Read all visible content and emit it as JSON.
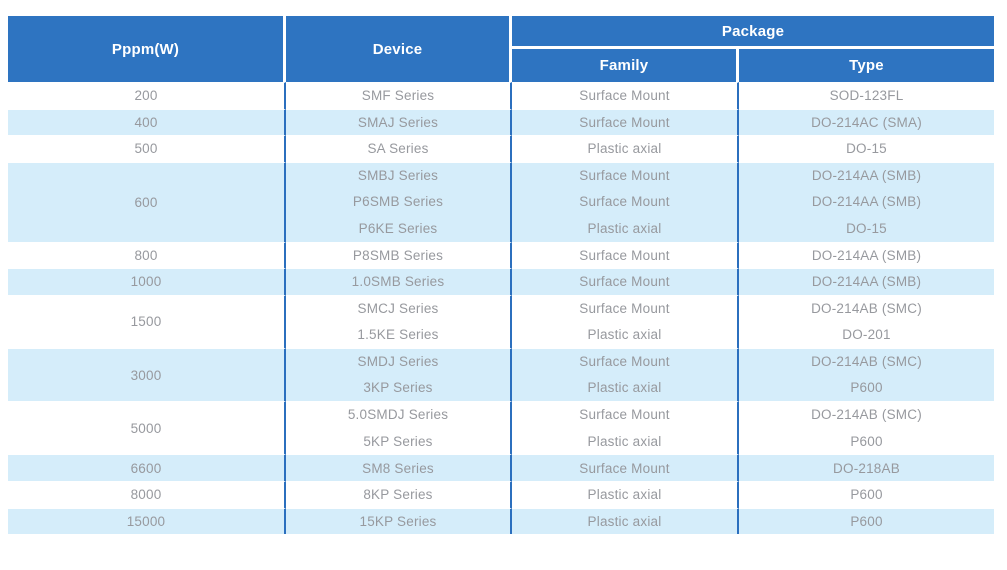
{
  "colors": {
    "header_bg": "#2E74C1",
    "header_text": "#FFFFFF",
    "row_alt_bg": "#D5EDFA",
    "divider": "#2B6FBE",
    "body_text": "#97999E"
  },
  "table": {
    "headers": {
      "pppm": "Pppm(W)",
      "device": "Device",
      "package": "Package",
      "family": "Family",
      "type": "Type"
    },
    "groups": [
      {
        "pppm": "200",
        "rows": [
          {
            "device": "SMF Series",
            "family": "Surface Mount",
            "type": "SOD-123FL"
          }
        ]
      },
      {
        "pppm": "400",
        "rows": [
          {
            "device": "SMAJ Series",
            "family": "Surface Mount",
            "type": "DO-214AC (SMA)"
          }
        ]
      },
      {
        "pppm": "500",
        "rows": [
          {
            "device": "SA Series",
            "family": "Plastic axial",
            "type": "DO-15"
          }
        ]
      },
      {
        "pppm": "600",
        "rows": [
          {
            "device": "SMBJ Series",
            "family": "Surface Mount",
            "type": "DO-214AA (SMB)"
          },
          {
            "device": "P6SMB Series",
            "family": "Surface Mount",
            "type": "DO-214AA (SMB)"
          },
          {
            "device": "P6KE Series",
            "family": "Plastic axial",
            "type": "DO-15"
          }
        ]
      },
      {
        "pppm": "800",
        "rows": [
          {
            "device": "P8SMB Series",
            "family": "Surface Mount",
            "type": "DO-214AA (SMB)"
          }
        ]
      },
      {
        "pppm": "1000",
        "rows": [
          {
            "device": "1.0SMB Series",
            "family": "Surface Mount",
            "type": "DO-214AA (SMB)"
          }
        ]
      },
      {
        "pppm": "1500",
        "rows": [
          {
            "device": "SMCJ Series",
            "family": "Surface Mount",
            "type": "DO-214AB (SMC)"
          },
          {
            "device": "1.5KE Series",
            "family": "Plastic axial",
            "type": "DO-201"
          }
        ]
      },
      {
        "pppm": "3000",
        "rows": [
          {
            "device": "SMDJ Series",
            "family": "Surface Mount",
            "type": "DO-214AB (SMC)"
          },
          {
            "device": "3KP Series",
            "family": "Plastic axial",
            "type": "P600"
          }
        ]
      },
      {
        "pppm": "5000",
        "rows": [
          {
            "device": "5.0SMDJ Series",
            "family": "Surface Mount",
            "type": "DO-214AB (SMC)"
          },
          {
            "device": "5KP Series",
            "family": "Plastic axial",
            "type": "P600"
          }
        ]
      },
      {
        "pppm": "6600",
        "rows": [
          {
            "device": "SM8 Series",
            "family": "Surface Mount",
            "type": "DO-218AB"
          }
        ]
      },
      {
        "pppm": "8000",
        "rows": [
          {
            "device": "8KP Series",
            "family": "Plastic axial",
            "type": "P600"
          }
        ]
      },
      {
        "pppm": "15000",
        "rows": [
          {
            "device": "15KP Series",
            "family": "Plastic axial",
            "type": "P600"
          }
        ]
      }
    ]
  }
}
